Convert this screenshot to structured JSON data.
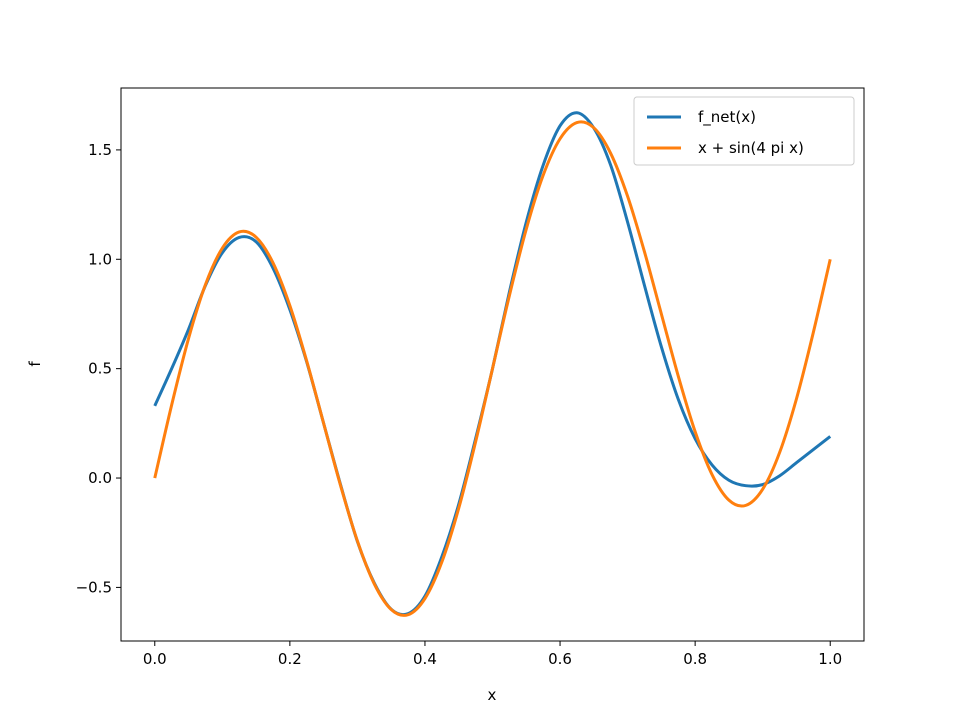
{
  "chart_data": {
    "type": "line",
    "xlabel": "x",
    "ylabel": "f",
    "xlim": [
      -0.05,
      1.05
    ],
    "ylim": [
      -0.745,
      1.783
    ],
    "xticks": [
      0.0,
      0.2,
      0.4,
      0.6,
      0.8,
      1.0
    ],
    "xtick_labels": [
      "0.0",
      "0.2",
      "0.4",
      "0.6",
      "0.8",
      "1.0"
    ],
    "yticks": [
      -0.5,
      0.0,
      0.5,
      1.0,
      1.5
    ],
    "ytick_labels": [
      "−0.5",
      "0.0",
      "0.5",
      "1.0",
      "1.5"
    ],
    "grid": false,
    "legend_position": "top-right",
    "x": [
      0,
      0.025,
      0.05,
      0.075,
      0.1,
      0.125,
      0.15,
      0.175,
      0.2,
      0.225,
      0.25,
      0.275,
      0.3,
      0.325,
      0.35,
      0.375,
      0.4,
      0.425,
      0.45,
      0.475,
      0.5,
      0.525,
      0.55,
      0.575,
      0.6,
      0.625,
      0.65,
      0.675,
      0.7,
      0.725,
      0.75,
      0.775,
      0.8,
      0.825,
      0.85,
      0.875,
      0.9,
      0.925,
      0.95,
      0.975,
      1.0
    ],
    "series": [
      {
        "name": "f_net(x)",
        "color": "#1f77b4",
        "values": [
          0.33,
          0.5,
          0.68,
          0.88,
          1.03,
          1.1,
          1.08,
          0.96,
          0.77,
          0.53,
          0.25,
          -0.03,
          -0.29,
          -0.48,
          -0.6,
          -0.62,
          -0.54,
          -0.36,
          -0.12,
          0.18,
          0.5,
          0.85,
          1.17,
          1.43,
          1.61,
          1.67,
          1.6,
          1.43,
          1.17,
          0.88,
          0.6,
          0.36,
          0.18,
          0.06,
          -0.01,
          -0.035,
          -0.03,
          0.01,
          0.07,
          0.13,
          0.19
        ]
      },
      {
        "name": "x + sin(4 pi x)",
        "color": "#ff7f0e",
        "values": [
          0,
          0.334,
          0.638,
          0.884,
          1.051,
          1.125,
          1.101,
          0.984,
          0.788,
          0.534,
          0.25,
          -0.034,
          -0.288,
          -0.484,
          -0.601,
          -0.625,
          -0.551,
          -0.384,
          -0.138,
          0.166,
          0.5,
          0.834,
          1.138,
          1.384,
          1.551,
          1.625,
          1.601,
          1.484,
          1.288,
          1.034,
          0.75,
          0.466,
          0.212,
          0.016,
          -0.101,
          -0.125,
          -0.051,
          0.116,
          0.362,
          0.666,
          1.0
        ]
      }
    ]
  }
}
